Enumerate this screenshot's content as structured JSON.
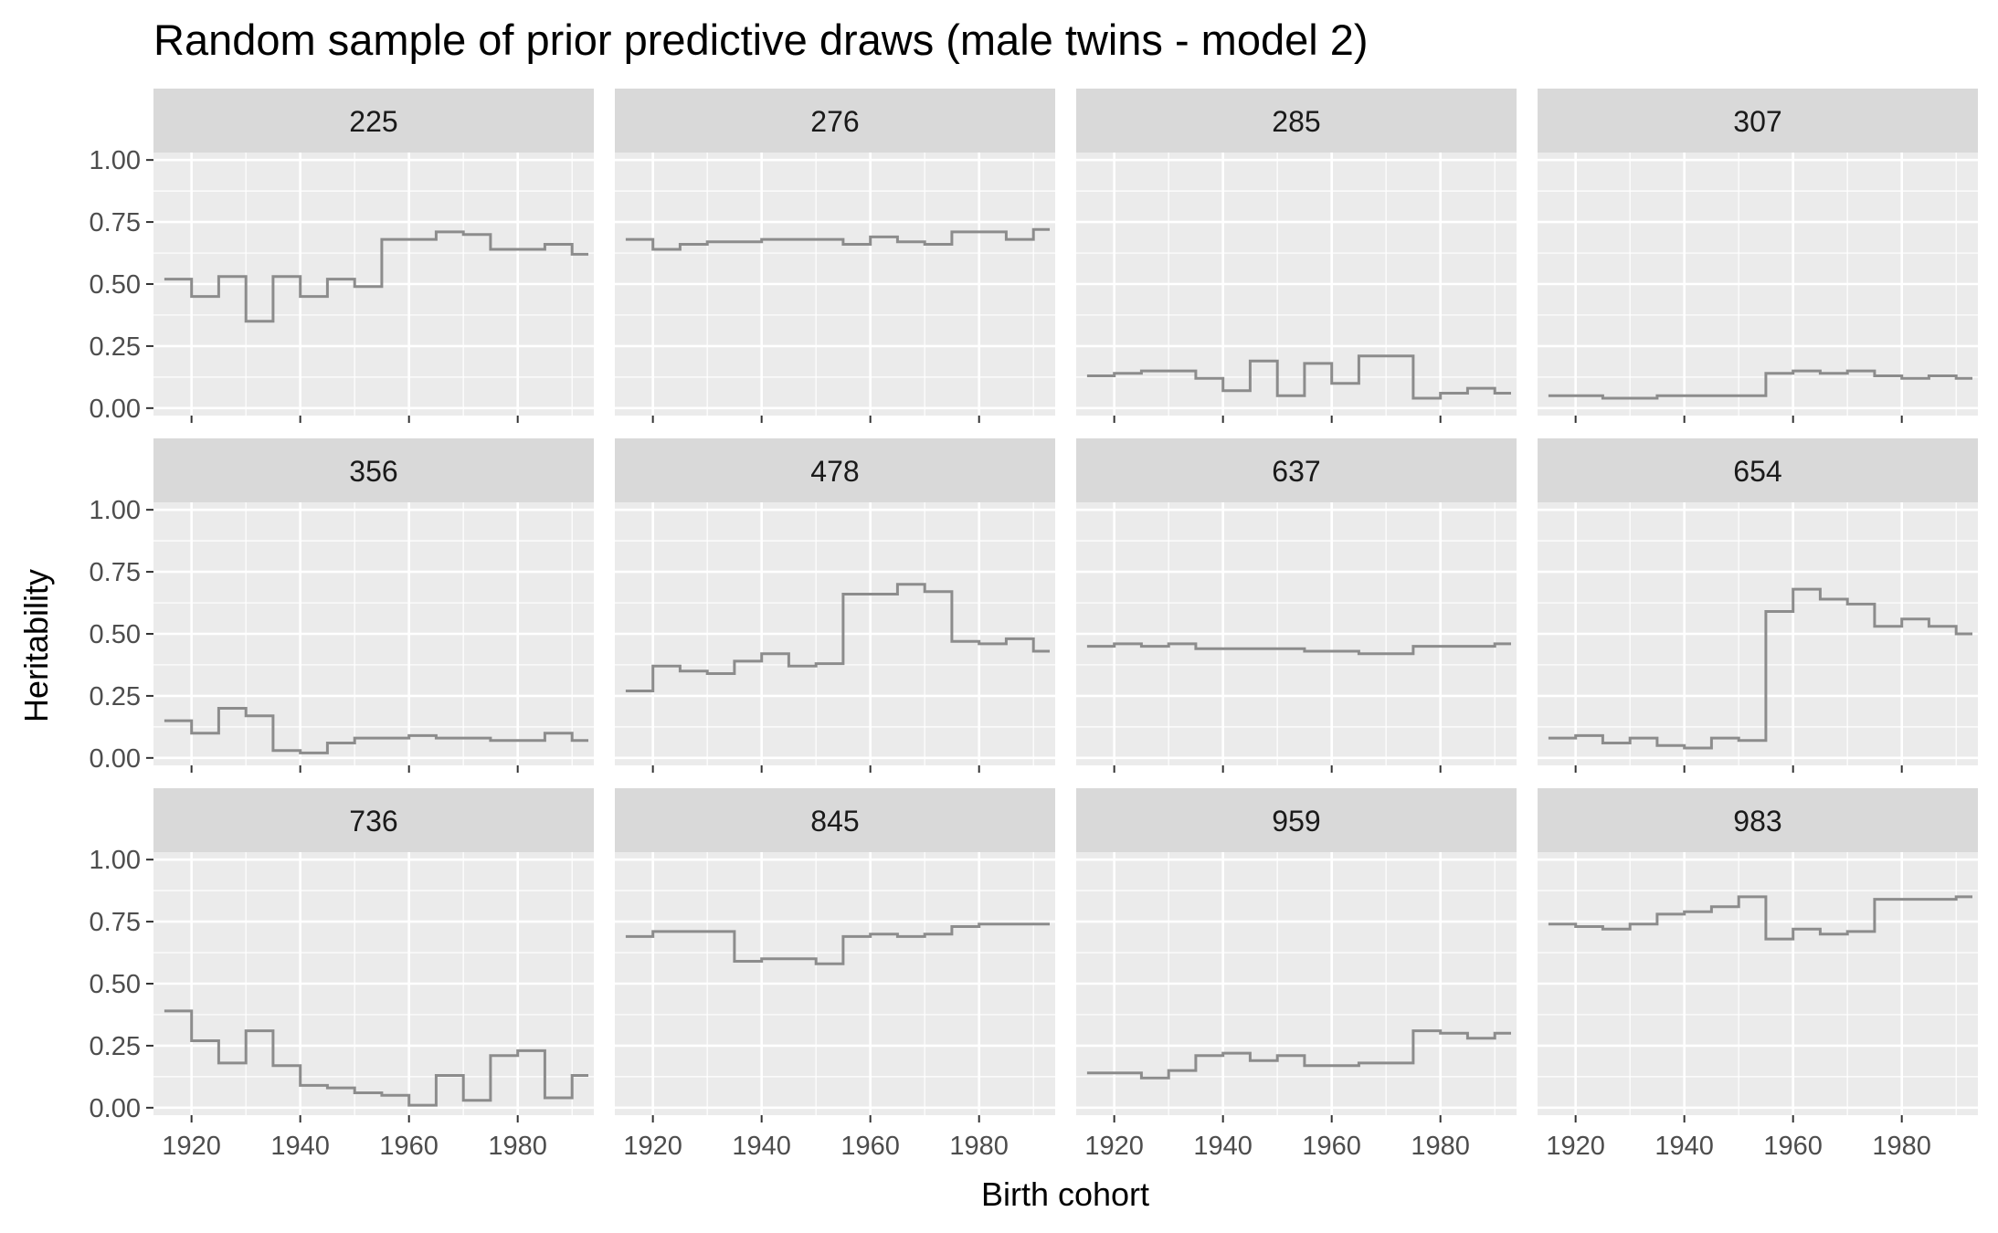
{
  "colors": {
    "panel_bg": "#EBEBEB",
    "strip_bg": "#D9D9D9",
    "grid_major": "#FFFFFF",
    "line": "#8C8C8C",
    "axis_text": "#4D4D4D",
    "strip_text": "#1A1A1A",
    "title_text": "#000000"
  },
  "chart_data": {
    "type": "line",
    "title": "Random sample of prior predictive draws (male twins - model 2)",
    "xlabel": "Birth cohort",
    "ylabel": "Heritability",
    "xlim": [
      1913,
      1994
    ],
    "ylim": [
      -0.03,
      1.03
    ],
    "xticks": [
      1920,
      1940,
      1960,
      1980
    ],
    "yticks": [
      0,
      0.25,
      0.5,
      0.75,
      1.0
    ],
    "ytick_labels": [
      "0.00",
      "0.25",
      "0.50",
      "0.75",
      "1.00"
    ],
    "grid": true,
    "facet_layout": {
      "rows": 3,
      "cols": 4
    },
    "x": [
      1915,
      1920,
      1925,
      1930,
      1935,
      1940,
      1945,
      1950,
      1955,
      1960,
      1965,
      1970,
      1975,
      1980,
      1985,
      1990,
      1993
    ],
    "series": [
      {
        "name": "225",
        "values": [
          0.52,
          0.45,
          0.53,
          0.35,
          0.53,
          0.45,
          0.52,
          0.49,
          0.68,
          0.68,
          0.71,
          0.7,
          0.64,
          0.64,
          0.66,
          0.62,
          0.62
        ]
      },
      {
        "name": "276",
        "values": [
          0.68,
          0.64,
          0.66,
          0.67,
          0.67,
          0.68,
          0.68,
          0.68,
          0.66,
          0.69,
          0.67,
          0.66,
          0.71,
          0.71,
          0.68,
          0.72,
          0.72
        ]
      },
      {
        "name": "285",
        "values": [
          0.13,
          0.14,
          0.15,
          0.15,
          0.12,
          0.07,
          0.19,
          0.05,
          0.18,
          0.1,
          0.21,
          0.21,
          0.04,
          0.06,
          0.08,
          0.06,
          0.06
        ]
      },
      {
        "name": "307",
        "values": [
          0.05,
          0.05,
          0.04,
          0.04,
          0.05,
          0.05,
          0.05,
          0.05,
          0.14,
          0.15,
          0.14,
          0.15,
          0.13,
          0.12,
          0.13,
          0.12,
          0.12
        ]
      },
      {
        "name": "356",
        "values": [
          0.15,
          0.1,
          0.2,
          0.17,
          0.03,
          0.02,
          0.06,
          0.08,
          0.08,
          0.09,
          0.08,
          0.08,
          0.07,
          0.07,
          0.1,
          0.07,
          0.07
        ]
      },
      {
        "name": "478",
        "values": [
          0.27,
          0.37,
          0.35,
          0.34,
          0.39,
          0.42,
          0.37,
          0.38,
          0.66,
          0.66,
          0.7,
          0.67,
          0.47,
          0.46,
          0.48,
          0.43,
          0.43
        ]
      },
      {
        "name": "637",
        "values": [
          0.45,
          0.46,
          0.45,
          0.46,
          0.44,
          0.44,
          0.44,
          0.44,
          0.43,
          0.43,
          0.42,
          0.42,
          0.45,
          0.45,
          0.45,
          0.46,
          0.46
        ]
      },
      {
        "name": "654",
        "values": [
          0.08,
          0.09,
          0.06,
          0.08,
          0.05,
          0.04,
          0.08,
          0.07,
          0.59,
          0.68,
          0.64,
          0.62,
          0.53,
          0.56,
          0.53,
          0.5,
          0.5
        ]
      },
      {
        "name": "736",
        "values": [
          0.39,
          0.27,
          0.18,
          0.31,
          0.17,
          0.09,
          0.08,
          0.06,
          0.05,
          0.01,
          0.13,
          0.03,
          0.21,
          0.23,
          0.04,
          0.13,
          0.13
        ]
      },
      {
        "name": "845",
        "values": [
          0.69,
          0.71,
          0.71,
          0.71,
          0.59,
          0.6,
          0.6,
          0.58,
          0.69,
          0.7,
          0.69,
          0.7,
          0.73,
          0.74,
          0.74,
          0.74,
          0.74
        ]
      },
      {
        "name": "959",
        "values": [
          0.14,
          0.14,
          0.12,
          0.15,
          0.21,
          0.22,
          0.19,
          0.21,
          0.17,
          0.17,
          0.18,
          0.18,
          0.31,
          0.3,
          0.28,
          0.3,
          0.3
        ]
      },
      {
        "name": "983",
        "values": [
          0.74,
          0.73,
          0.72,
          0.74,
          0.78,
          0.79,
          0.81,
          0.85,
          0.68,
          0.72,
          0.7,
          0.71,
          0.84,
          0.84,
          0.84,
          0.85,
          0.85
        ]
      }
    ]
  }
}
